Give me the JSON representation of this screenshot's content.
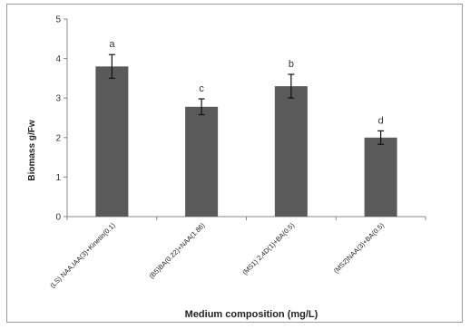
{
  "chart_data": {
    "type": "bar",
    "title": "",
    "xlabel": "Medium composition (mg/L)",
    "ylabel": "Biomass g/Fw",
    "ylim": [
      0,
      5
    ],
    "yticks": [
      0,
      1,
      2,
      3,
      4,
      5
    ],
    "categories": [
      "(LS) NAA,IAA(3)+Kinetin(0.1)",
      "(B5)BA(0.22)+NAA(1.86)",
      "(MS1) 2,4D(1)+BA(0.5)",
      "(MS2)NAA(3)+BA(0.5)"
    ],
    "values": [
      3.8,
      2.78,
      3.3,
      2.0
    ],
    "error": [
      0.3,
      0.2,
      0.3,
      0.17
    ],
    "significance_letters": [
      "a",
      "c",
      "b",
      "d"
    ],
    "bar_color": "#5a5a5a",
    "grid": false,
    "legend": "none"
  }
}
